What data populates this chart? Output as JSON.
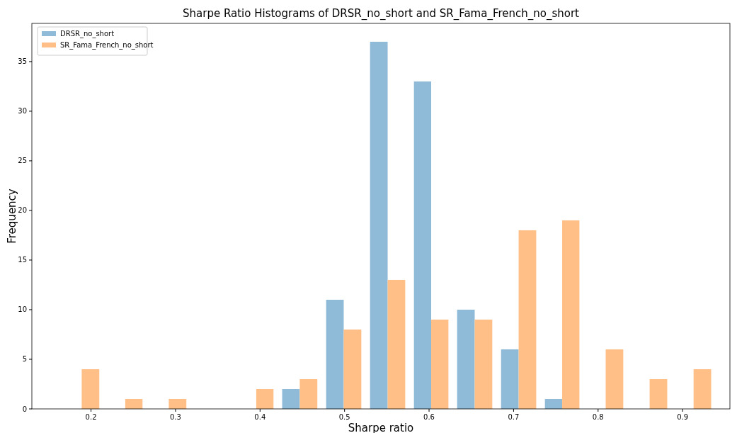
{
  "chart_data": {
    "type": "histogram",
    "title": "Sharpe Ratio Histograms of DRSR_no_short and SR_Fama_French_no_short",
    "xlabel": "Sharpe ratio",
    "ylabel": "Frequency",
    "bins": [
      0.163,
      0.215,
      0.266,
      0.318,
      0.37,
      0.421,
      0.473,
      0.525,
      0.577,
      0.628,
      0.68,
      0.732,
      0.783,
      0.835,
      0.887,
      0.939
    ],
    "series": [
      {
        "name": "DRSR_no_short",
        "color": "#8fbbd9",
        "values": [
          0,
          0,
          0,
          0,
          0,
          2,
          11,
          37,
          33,
          10,
          6,
          1,
          0,
          0,
          0
        ]
      },
      {
        "name": "SR_Fama_French_no_short",
        "color": "#ffbf86",
        "values": [
          4,
          1,
          1,
          0,
          2,
          3,
          8,
          13,
          9,
          9,
          18,
          19,
          6,
          3,
          4
        ]
      }
    ],
    "xlim": [
      0.13,
      0.956
    ],
    "ylim": [
      0,
      38.85
    ],
    "xticks": [
      0.2,
      0.3,
      0.4,
      0.5,
      0.6,
      0.7,
      0.8,
      0.9
    ],
    "yticks": [
      0,
      5,
      10,
      15,
      20,
      25,
      30,
      35
    ],
    "legend": "top left",
    "grid": false
  }
}
